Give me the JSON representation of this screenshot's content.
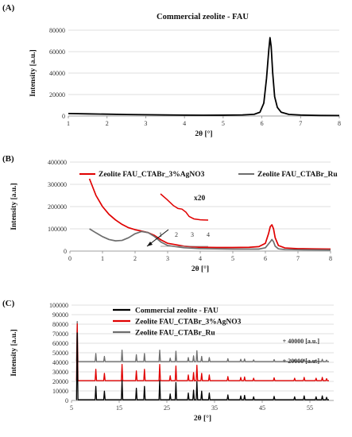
{
  "panels": {
    "a": {
      "label": "(A)"
    },
    "b": {
      "label": "(B)"
    },
    "c": {
      "label": "(C)"
    }
  },
  "chart_data": [
    {
      "id": "A",
      "type": "line",
      "title": "Commercial zeolite - FAU",
      "xlabel": "2θ [°]",
      "ylabel": "Intensity [a.u.]",
      "xlim": [
        1,
        8
      ],
      "ylim": [
        0,
        80000
      ],
      "xticks": [
        "1",
        "2",
        "3",
        "4",
        "5",
        "6",
        "7",
        "8"
      ],
      "yticks": [
        "0",
        "20000",
        "40000",
        "60000",
        "80000"
      ],
      "grid": "horizontal",
      "series": [
        {
          "color": "#000000",
          "x": [
            1.0,
            1.5,
            2.0,
            2.5,
            3.0,
            3.5,
            4.0,
            4.5,
            5.0,
            5.5,
            5.8,
            5.95,
            6.05,
            6.12,
            6.18,
            6.21,
            6.24,
            6.28,
            6.33,
            6.4,
            6.5,
            6.7,
            7.0,
            7.5,
            8.0
          ],
          "y": [
            2300,
            2000,
            1700,
            1400,
            1200,
            1000,
            850,
            750,
            800,
            1000,
            1600,
            3500,
            12000,
            35000,
            62000,
            73000,
            65000,
            40000,
            18000,
            8000,
            3500,
            1500,
            900,
            500,
            400
          ]
        }
      ]
    },
    {
      "id": "B",
      "type": "line",
      "xlabel": "2θ [°]",
      "ylabel": "Intensity [a.u.]",
      "xlim": [
        0,
        8
      ],
      "ylim": [
        0,
        400000
      ],
      "xticks": [
        "0",
        "1",
        "2",
        "3",
        "4",
        "5",
        "6",
        "7",
        "8"
      ],
      "yticks": [
        "0",
        "100000",
        "200000",
        "300000",
        "400000"
      ],
      "grid": "horizontal",
      "legend": "top",
      "inset": {
        "label": "x20",
        "ticks": [
          "1",
          "2",
          "3",
          "4"
        ],
        "x": [
          1.0,
          1.4,
          1.8,
          2.1,
          2.35,
          2.6,
          2.8,
          3.1,
          3.5,
          4.0
        ],
        "y": [
          100,
          82,
          62,
          52,
          50,
          40,
          26,
          18,
          15,
          14
        ]
      },
      "series": [
        {
          "name": "Zeolite FAU_CTABr_3%AgNO3",
          "color": "#e00000",
          "x": [
            0.6,
            0.8,
            1.0,
            1.2,
            1.4,
            1.6,
            1.8,
            2.0,
            2.2,
            2.4,
            2.6,
            2.8,
            3.0,
            3.5,
            4.0,
            4.5,
            5.0,
            5.5,
            5.8,
            6.0,
            6.1,
            6.15,
            6.2,
            6.25,
            6.3,
            6.4,
            6.6,
            7.0,
            7.5,
            8.0
          ],
          "y": [
            325000,
            250000,
            200000,
            165000,
            140000,
            120000,
            105000,
            96000,
            90000,
            83000,
            70000,
            50000,
            35000,
            22000,
            17000,
            16000,
            16000,
            17000,
            20000,
            35000,
            80000,
            110000,
            118000,
            100000,
            60000,
            25000,
            14000,
            11000,
            10000,
            9000
          ]
        },
        {
          "name": "Zeolite FAU_CTABr_Ru",
          "color": "#6e6e6e",
          "x": [
            0.6,
            0.8,
            1.0,
            1.2,
            1.4,
            1.6,
            1.8,
            2.0,
            2.2,
            2.4,
            2.6,
            2.8,
            3.0,
            3.5,
            4.0,
            5.0,
            5.8,
            6.0,
            6.15,
            6.2,
            6.25,
            6.3,
            6.4,
            6.6,
            7.0,
            8.0
          ],
          "y": [
            100000,
            82000,
            65000,
            52000,
            46000,
            48000,
            60000,
            78000,
            88000,
            83000,
            65000,
            40000,
            25000,
            15000,
            11000,
            9000,
            9000,
            15000,
            42000,
            52000,
            42000,
            22000,
            10000,
            7000,
            6000,
            5000
          ]
        }
      ]
    },
    {
      "id": "C",
      "type": "line",
      "xlabel": "2θ [°]",
      "ylabel": "Intensity [a.u.]",
      "xlim": [
        5,
        60
      ],
      "ylim": [
        0,
        100000
      ],
      "xticks": [
        "5",
        "15",
        "25",
        "35",
        "45",
        "55"
      ],
      "yticks": [
        "0",
        "10000",
        "20000",
        "30000",
        "40000",
        "50000",
        "60000",
        "70000",
        "80000",
        "90000",
        "100000"
      ],
      "grid": "horizontal",
      "legend": "top",
      "offset_labels": [
        "+ 40000 [a.u.]",
        "+ 20000 [a.u.]"
      ],
      "peaks": {
        "positions": [
          6.2,
          10.1,
          11.9,
          15.6,
          18.6,
          20.3,
          23.5,
          25.7,
          26.9,
          29.5,
          30.6,
          31.3,
          32.3,
          33.9,
          37.8,
          40.5,
          41.3,
          43.2,
          47.5,
          51.8,
          53.8,
          56.3,
          57.6,
          58.5
        ],
        "heights": [
          70000,
          14000,
          9000,
          20000,
          12000,
          14000,
          20000,
          6000,
          18000,
          7000,
          10000,
          19000,
          9000,
          7000,
          5000,
          4000,
          4500,
          3000,
          3500,
          3000,
          4000,
          3000,
          4000,
          2500
        ],
        "width": 0.15
      },
      "series": [
        {
          "name": "Commercial zeolite - FAU",
          "color": "#000000",
          "offset": 0,
          "baseline": 800
        },
        {
          "name": "Zeolite FAU_CTABr_3%AgNO3",
          "color": "#e00000",
          "offset": 20000,
          "baseline": 800
        },
        {
          "name": "Zeolite FAU_CTABr_Ru",
          "color": "#6e6e6e",
          "offset": 40000,
          "baseline": 800
        }
      ]
    }
  ]
}
